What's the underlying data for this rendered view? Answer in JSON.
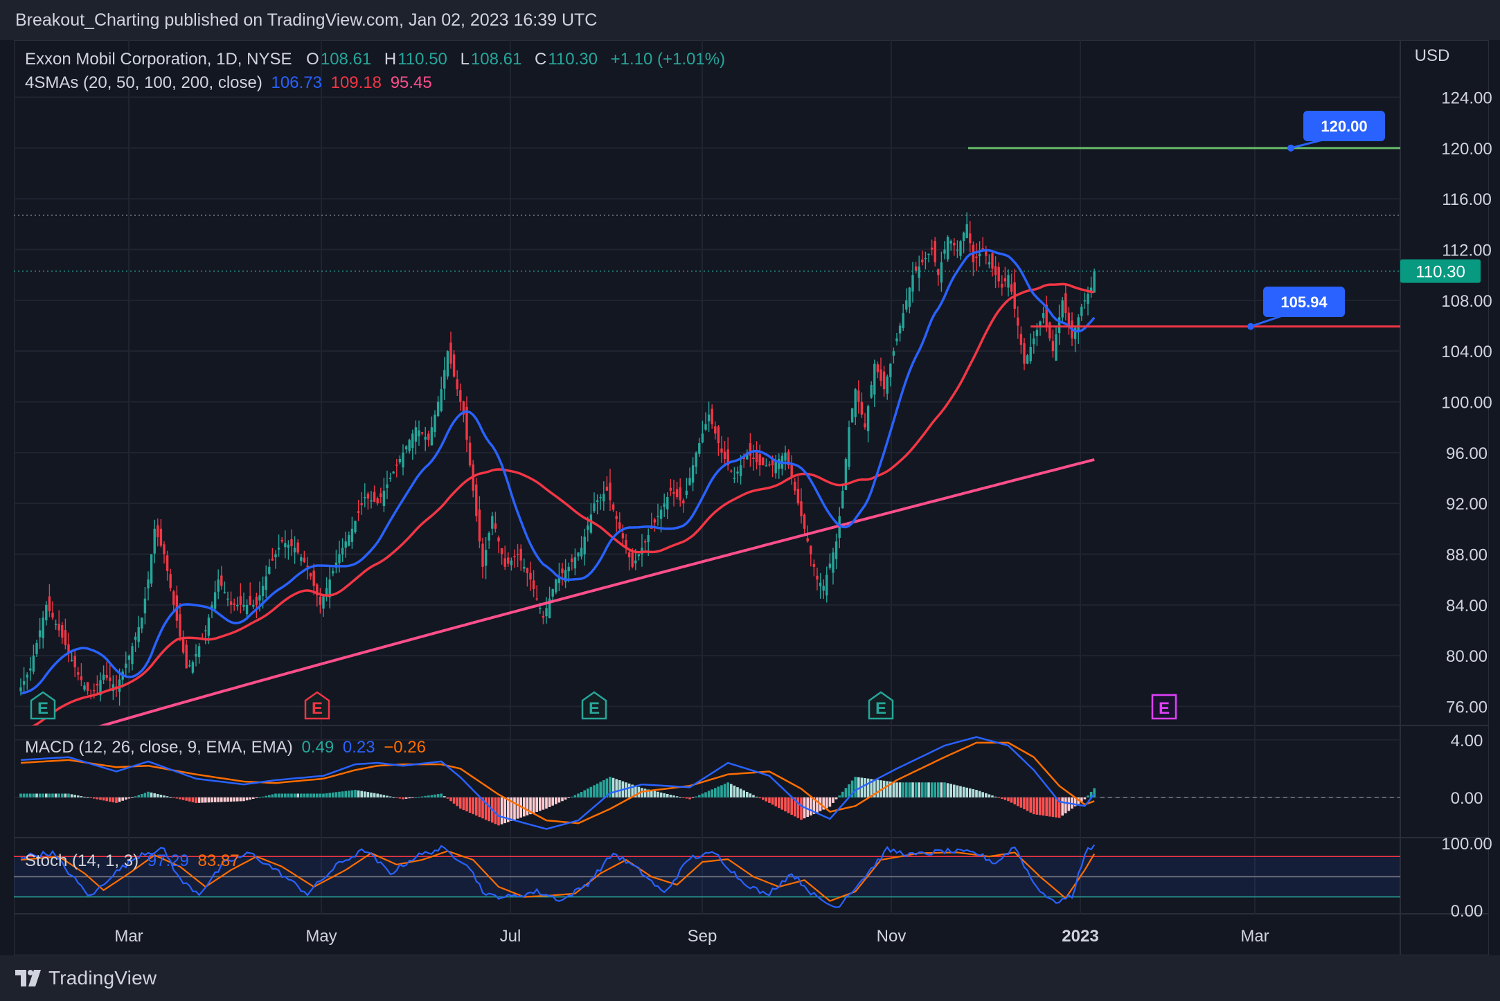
{
  "header": {
    "published_by": "Breakout_Charting published on TradingView.com, Jan 02, 2023 16:39 UTC"
  },
  "footer": {
    "brand": "TradingView"
  },
  "colors": {
    "background": "#131722",
    "up_candle": "#26a69a",
    "down_candle": "#f23645",
    "sma20": "#2962ff",
    "sma50": "#f23645",
    "sma200": "#ff4f8b",
    "resistance": "#66bb6a",
    "support": "#f23645",
    "label_bg": "#2962ff",
    "macd_line": "#2962ff",
    "signal_line": "#ff6d00",
    "stoch_k": "#2962ff",
    "stoch_d": "#ff6d00"
  },
  "legend": {
    "symbol": "Exxon Mobil Corporation, 1D, NYSE",
    "o_label": "O",
    "o_value": "108.61",
    "h_label": "H",
    "h_value": "110.50",
    "l_label": "L",
    "l_value": "108.61",
    "c_label": "C",
    "c_value": "110.30",
    "change": "+1.10 (+1.01%)",
    "sma_title": "4SMAs (20, 50, 100, 200, close)",
    "sma_v1": "106.73",
    "sma_v2": "109.18",
    "sma_v3": "95.45",
    "macd_title": "MACD (12, 26, close, 9, EMA, EMA)",
    "macd_v1": "0.49",
    "macd_v2": "0.23",
    "macd_v3": "−0.26",
    "stoch_title": "Stoch (14, 1, 3)",
    "stoch_v1": "97.29",
    "stoch_v2": "83.87"
  },
  "chart_data": {
    "type": "candlestick",
    "symbol": "Exxon Mobil Corporation",
    "currency": "USD",
    "price_axis": {
      "ticks": [
        "124.00",
        "120.00",
        "116.00",
        "112.00",
        "108.00",
        "104.00",
        "100.00",
        "96.00",
        "92.00",
        "88.00",
        "84.00",
        "80.00",
        "76.00"
      ],
      "ylim": [
        74.5,
        128.5
      ]
    },
    "time_axis": {
      "ticks": [
        "Mar",
        "May",
        "Jul",
        "Sep",
        "Nov",
        "2023",
        "Mar"
      ]
    },
    "last_price_label": "110.30",
    "last_price": 110.3,
    "recent_high": 114.7,
    "levels": [
      {
        "label": "120.00",
        "value": 120.0
      },
      {
        "label": "105.94",
        "value": 105.94
      }
    ],
    "earnings_markers": [
      "E",
      "E",
      "E",
      "E",
      "E"
    ],
    "candle_keypoints": [
      [
        0,
        77.5
      ],
      [
        3,
        79
      ],
      [
        8,
        84
      ],
      [
        12,
        82
      ],
      [
        18,
        78.5
      ],
      [
        22,
        76.8
      ],
      [
        26,
        78.5
      ],
      [
        30,
        77.5
      ],
      [
        34,
        80
      ],
      [
        38,
        83
      ],
      [
        40,
        86
      ],
      [
        42,
        90
      ],
      [
        45,
        88
      ],
      [
        48,
        84
      ],
      [
        52,
        79
      ],
      [
        54,
        79.5
      ],
      [
        58,
        82
      ],
      [
        62,
        86
      ],
      [
        66,
        84
      ],
      [
        70,
        84
      ],
      [
        74,
        84
      ],
      [
        78,
        87
      ],
      [
        82,
        89
      ],
      [
        86,
        88.5
      ],
      [
        90,
        87
      ],
      [
        94,
        84
      ],
      [
        97,
        86
      ],
      [
        100,
        88
      ],
      [
        104,
        90
      ],
      [
        108,
        92.5
      ],
      [
        112,
        92
      ],
      [
        116,
        94
      ],
      [
        120,
        96
      ],
      [
        124,
        98
      ],
      [
        128,
        97
      ],
      [
        132,
        101
      ],
      [
        134,
        104
      ],
      [
        136,
        102
      ],
      [
        139,
        99
      ],
      [
        142,
        93
      ],
      [
        145,
        87
      ],
      [
        148,
        91
      ],
      [
        152,
        87
      ],
      [
        156,
        88
      ],
      [
        160,
        86
      ],
      [
        164,
        83
      ],
      [
        168,
        86
      ],
      [
        172,
        87
      ],
      [
        176,
        88.5
      ],
      [
        180,
        92
      ],
      [
        184,
        93
      ],
      [
        188,
        90
      ],
      [
        192,
        87
      ],
      [
        196,
        89
      ],
      [
        200,
        91
      ],
      [
        204,
        93
      ],
      [
        208,
        92
      ],
      [
        212,
        96
      ],
      [
        216,
        99
      ],
      [
        220,
        96
      ],
      [
        224,
        94
      ],
      [
        228,
        96
      ],
      [
        232,
        95
      ],
      [
        236,
        95
      ],
      [
        240,
        96
      ],
      [
        244,
        92
      ],
      [
        247,
        89
      ],
      [
        250,
        86
      ],
      [
        252,
        85.5
      ],
      [
        256,
        89
      ],
      [
        258,
        93
      ],
      [
        260,
        98
      ],
      [
        262,
        101
      ],
      [
        265,
        98
      ],
      [
        268,
        103
      ],
      [
        271,
        101
      ],
      [
        274,
        104
      ],
      [
        277,
        107
      ],
      [
        280,
        110
      ],
      [
        283,
        111
      ],
      [
        286,
        112
      ],
      [
        288,
        110
      ],
      [
        291,
        113
      ],
      [
        294,
        112
      ],
      [
        297,
        114
      ],
      [
        299,
        111
      ],
      [
        302,
        112
      ],
      [
        305,
        110.5
      ],
      [
        308,
        109
      ],
      [
        310,
        110
      ],
      [
        313,
        106
      ],
      [
        315,
        103
      ],
      [
        318,
        105
      ],
      [
        321,
        107
      ],
      [
        324,
        104
      ],
      [
        327,
        108
      ],
      [
        330,
        105
      ],
      [
        333,
        107.5
      ],
      [
        336,
        109
      ],
      [
        337,
        110.3
      ]
    ],
    "macd_axis": {
      "ticks": [
        "4.00",
        "0.00"
      ],
      "ylim": [
        -2.8,
        5.0
      ]
    },
    "macd_line_keypoints": [
      [
        0,
        2.6
      ],
      [
        15,
        2.8
      ],
      [
        30,
        1.8
      ],
      [
        40,
        2.5
      ],
      [
        55,
        1.3
      ],
      [
        70,
        0.9
      ],
      [
        80,
        1.2
      ],
      [
        95,
        1.5
      ],
      [
        105,
        2.3
      ],
      [
        112,
        2.4
      ],
      [
        120,
        2.2
      ],
      [
        132,
        2.5
      ],
      [
        138,
        1.4
      ],
      [
        150,
        -1.3
      ],
      [
        165,
        -2.2
      ],
      [
        175,
        -1.6
      ],
      [
        185,
        0.3
      ],
      [
        195,
        0.9
      ],
      [
        210,
        0.7
      ],
      [
        222,
        2.4
      ],
      [
        235,
        1.5
      ],
      [
        245,
        -0.6
      ],
      [
        254,
        -1.5
      ],
      [
        262,
        0.5
      ],
      [
        275,
        2.0
      ],
      [
        290,
        3.6
      ],
      [
        300,
        4.2
      ],
      [
        310,
        3.6
      ],
      [
        318,
        1.9
      ],
      [
        326,
        -0.3
      ],
      [
        334,
        -0.6
      ],
      [
        337,
        0.23
      ]
    ],
    "signal_line_keypoints": [
      [
        0,
        2.4
      ],
      [
        15,
        2.6
      ],
      [
        30,
        2.1
      ],
      [
        40,
        2.2
      ],
      [
        55,
        1.6
      ],
      [
        70,
        1.1
      ],
      [
        80,
        1.0
      ],
      [
        95,
        1.3
      ],
      [
        105,
        1.9
      ],
      [
        112,
        2.2
      ],
      [
        120,
        2.3
      ],
      [
        132,
        2.3
      ],
      [
        138,
        2.0
      ],
      [
        150,
        0.2
      ],
      [
        165,
        -1.6
      ],
      [
        175,
        -1.8
      ],
      [
        185,
        -0.8
      ],
      [
        195,
        0.4
      ],
      [
        210,
        0.8
      ],
      [
        222,
        1.6
      ],
      [
        235,
        1.8
      ],
      [
        245,
        0.6
      ],
      [
        254,
        -1.0
      ],
      [
        262,
        -0.6
      ],
      [
        275,
        1.2
      ],
      [
        290,
        2.8
      ],
      [
        300,
        3.8
      ],
      [
        310,
        3.8
      ],
      [
        318,
        2.8
      ],
      [
        326,
        0.8
      ],
      [
        334,
        -0.5
      ],
      [
        337,
        -0.26
      ]
    ],
    "stoch_axis": {
      "ticks": [
        "100.00",
        "0.00"
      ],
      "ylim": [
        -5,
        108
      ],
      "bands": [
        80,
        50,
        20
      ]
    },
    "stoch_k_keypoints": [
      [
        0,
        80
      ],
      [
        10,
        85
      ],
      [
        18,
        40
      ],
      [
        22,
        20
      ],
      [
        28,
        50
      ],
      [
        38,
        85
      ],
      [
        45,
        90
      ],
      [
        50,
        45
      ],
      [
        56,
        25
      ],
      [
        64,
        70
      ],
      [
        72,
        85
      ],
      [
        80,
        60
      ],
      [
        90,
        25
      ],
      [
        100,
        70
      ],
      [
        108,
        90
      ],
      [
        116,
        55
      ],
      [
        124,
        80
      ],
      [
        132,
        92
      ],
      [
        140,
        70
      ],
      [
        146,
        22
      ],
      [
        154,
        20
      ],
      [
        162,
        28
      ],
      [
        170,
        15
      ],
      [
        178,
        40
      ],
      [
        186,
        85
      ],
      [
        194,
        60
      ],
      [
        202,
        25
      ],
      [
        210,
        78
      ],
      [
        218,
        85
      ],
      [
        226,
        45
      ],
      [
        234,
        22
      ],
      [
        242,
        55
      ],
      [
        250,
        18
      ],
      [
        256,
        4
      ],
      [
        264,
        45
      ],
      [
        272,
        90
      ],
      [
        280,
        82
      ],
      [
        290,
        88
      ],
      [
        300,
        85
      ],
      [
        306,
        70
      ],
      [
        312,
        95
      ],
      [
        318,
        40
      ],
      [
        324,
        12
      ],
      [
        330,
        20
      ],
      [
        334,
        85
      ],
      [
        337,
        97
      ]
    ],
    "stoch_d_keypoints": [
      [
        0,
        75
      ],
      [
        12,
        80
      ],
      [
        20,
        55
      ],
      [
        26,
        30
      ],
      [
        34,
        55
      ],
      [
        42,
        82
      ],
      [
        50,
        65
      ],
      [
        58,
        35
      ],
      [
        66,
        60
      ],
      [
        74,
        80
      ],
      [
        82,
        65
      ],
      [
        92,
        35
      ],
      [
        102,
        60
      ],
      [
        110,
        85
      ],
      [
        118,
        68
      ],
      [
        126,
        75
      ],
      [
        134,
        88
      ],
      [
        142,
        75
      ],
      [
        150,
        35
      ],
      [
        158,
        20
      ],
      [
        166,
        22
      ],
      [
        174,
        25
      ],
      [
        182,
        55
      ],
      [
        190,
        75
      ],
      [
        198,
        50
      ],
      [
        206,
        38
      ],
      [
        214,
        72
      ],
      [
        222,
        76
      ],
      [
        230,
        50
      ],
      [
        238,
        35
      ],
      [
        246,
        45
      ],
      [
        254,
        14
      ],
      [
        262,
        28
      ],
      [
        270,
        75
      ],
      [
        282,
        85
      ],
      [
        294,
        86
      ],
      [
        304,
        80
      ],
      [
        312,
        86
      ],
      [
        320,
        50
      ],
      [
        328,
        18
      ],
      [
        334,
        60
      ],
      [
        337,
        83.87
      ]
    ]
  }
}
